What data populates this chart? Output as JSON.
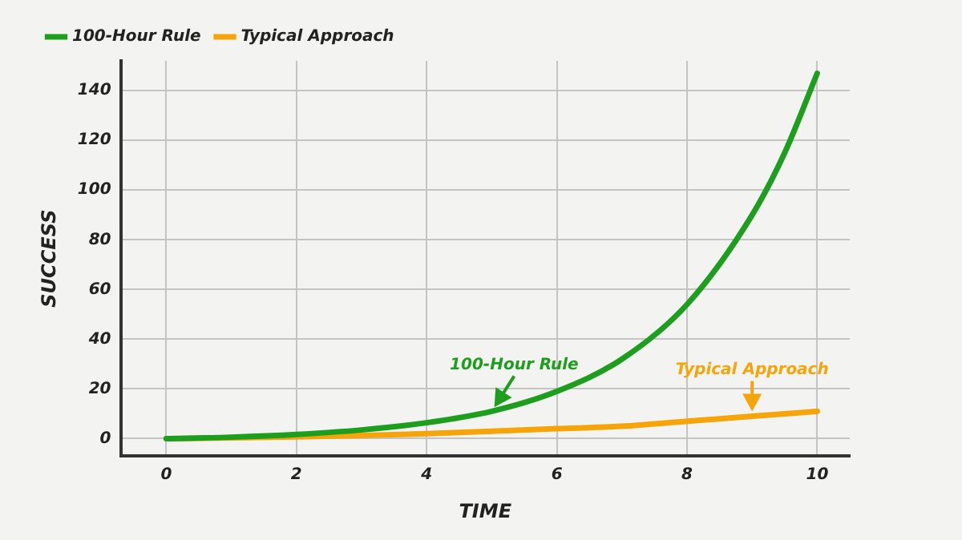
{
  "chart_data": {
    "type": "line",
    "xlabel": "TIME",
    "ylabel": "SUCCESS",
    "x": [
      0,
      1,
      2,
      3,
      4,
      5,
      6,
      7,
      8,
      9,
      9.5,
      10
    ],
    "series": [
      {
        "name": "100-Hour Rule",
        "color": "#1e9e1e",
        "values": [
          0,
          0.6,
          1.7,
          3.5,
          6.4,
          11,
          19,
          32,
          54,
          90,
          115,
          147
        ]
      },
      {
        "name": "Typical Approach",
        "color": "#f5a50a",
        "values": [
          0,
          0.3,
          0.7,
          1.3,
          2,
          3,
          4,
          5,
          7,
          9,
          10,
          11
        ]
      }
    ],
    "xlim": [
      -0.7,
      10.5
    ],
    "ylim": [
      -7,
      152
    ],
    "xticks": [
      0,
      2,
      4,
      6,
      8,
      10
    ],
    "yticks": [
      0,
      20,
      40,
      60,
      80,
      100,
      120,
      140
    ],
    "grid": true,
    "legend": "top left",
    "marker": "none",
    "line_style": "solid",
    "annotations": [
      {
        "text": "100-Hour Rule",
        "x": 5,
        "y": 11
      },
      {
        "text": "Typical Approach",
        "x": 9,
        "y": 9
      }
    ]
  }
}
